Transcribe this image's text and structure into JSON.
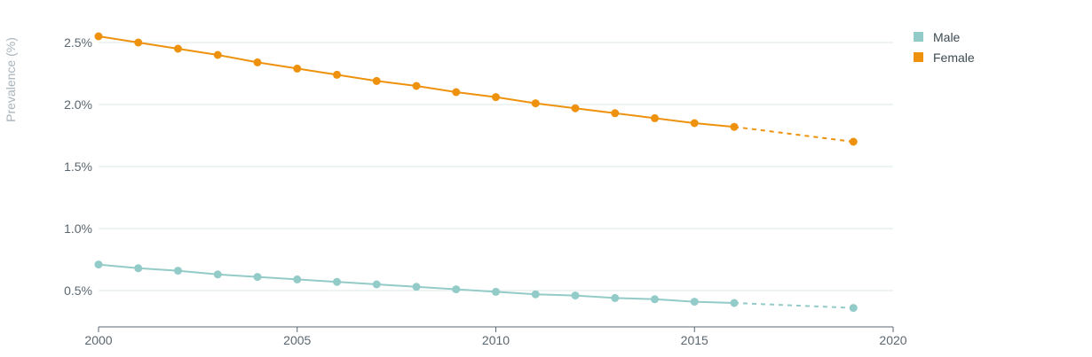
{
  "chart_data": {
    "type": "line",
    "title": "",
    "xlabel": "",
    "ylabel": "Prevalence (%)",
    "xlim": [
      2000,
      2020
    ],
    "ylim": [
      0.25,
      2.6
    ],
    "x_ticks": [
      2000,
      2005,
      2010,
      2015,
      2020
    ],
    "y_ticks": [
      0.5,
      1.0,
      1.5,
      2.0,
      2.5
    ],
    "y_tick_labels": [
      "0.5%",
      "1.0%",
      "1.5%",
      "2.0%",
      "2.5%"
    ],
    "grid": "horizontal",
    "legend_position": "top-right",
    "projection_note": "solid line through 2016, dashed segment to 2019",
    "series": [
      {
        "name": "Male",
        "color": "#93cbc8",
        "x": [
          2000,
          2001,
          2002,
          2003,
          2004,
          2005,
          2006,
          2007,
          2008,
          2009,
          2010,
          2011,
          2012,
          2013,
          2014,
          2015,
          2016,
          2019
        ],
        "values": [
          0.71,
          0.68,
          0.66,
          0.63,
          0.61,
          0.59,
          0.57,
          0.55,
          0.53,
          0.51,
          0.49,
          0.47,
          0.46,
          0.44,
          0.43,
          0.41,
          0.4,
          0.36
        ]
      },
      {
        "name": "Female",
        "color": "#ee920d",
        "x": [
          2000,
          2001,
          2002,
          2003,
          2004,
          2005,
          2006,
          2007,
          2008,
          2009,
          2010,
          2011,
          2012,
          2013,
          2014,
          2015,
          2016,
          2019
        ],
        "values": [
          2.55,
          2.5,
          2.45,
          2.4,
          2.34,
          2.29,
          2.24,
          2.19,
          2.15,
          2.1,
          2.06,
          2.01,
          1.97,
          1.93,
          1.89,
          1.85,
          1.82,
          1.7
        ]
      }
    ]
  }
}
